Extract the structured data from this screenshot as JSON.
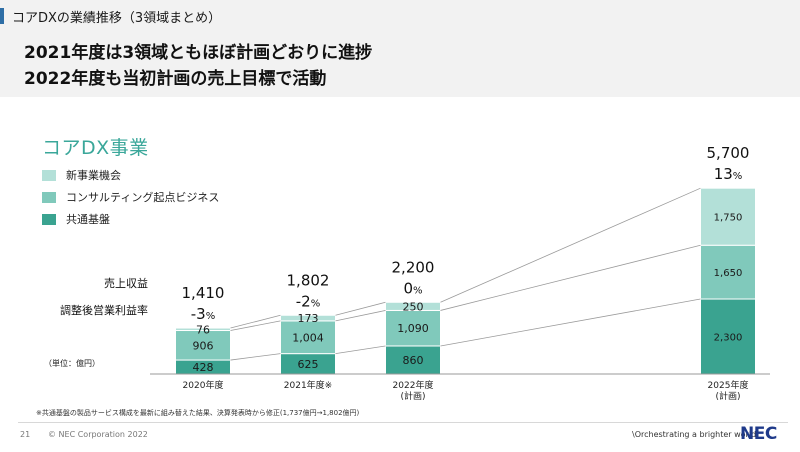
{
  "header": {
    "section_label": "コアDXの業績推移（3領域まとめ）",
    "headline_1": "2021年度は3領域ともほぼ計画どおりに進捗",
    "headline_2": "2022年度も当初計画の売上目標で活動"
  },
  "chart_data": {
    "type": "bar",
    "stacked": true,
    "title": "コアDX事業",
    "categories": [
      "2020年度",
      "2021年度※",
      "2022年度\n(計画)",
      "2025年度\n(計画)"
    ],
    "series": [
      {
        "name": "共通基盤",
        "color": "#3aa390",
        "values": [
          428,
          625,
          860,
          2300
        ]
      },
      {
        "name": "コンサルティング起点ビジネス",
        "color": "#80c9bb",
        "values": [
          906,
          1004,
          1090,
          1650
        ]
      },
      {
        "name": "新事業機会",
        "color": "#b3e0d8",
        "values": [
          76,
          173,
          250,
          1750
        ]
      }
    ],
    "value_labels": [
      [
        "428",
        "906",
        "76"
      ],
      [
        "625",
        "1,004",
        "173"
      ],
      [
        "860",
        "1,090",
        "250"
      ],
      [
        "2,300",
        "1,650",
        "1,750"
      ]
    ],
    "totals": [
      "1,410",
      "1,802",
      "2,200",
      "5,700"
    ],
    "margins": [
      {
        "num": "-3",
        "unit": "%"
      },
      {
        "num": "-2",
        "unit": "%"
      },
      {
        "num": "0",
        "unit": "%"
      },
      {
        "num": "13",
        "unit": "%"
      }
    ],
    "row_labels": {
      "revenue": "売上収益",
      "margin": "調整後営業利益率"
    },
    "unit_note": "（単位：億円）"
  },
  "footer": {
    "footnote": "※共通基盤の製品サービス構成を最新に組み替えた結果、決算発表時から修正(1,737億円→1,802億円)",
    "page_number": "21",
    "copyright": "© NEC Corporation 2022",
    "tagline": "\\Orchestrating a brighter world",
    "logo": "NEC"
  }
}
